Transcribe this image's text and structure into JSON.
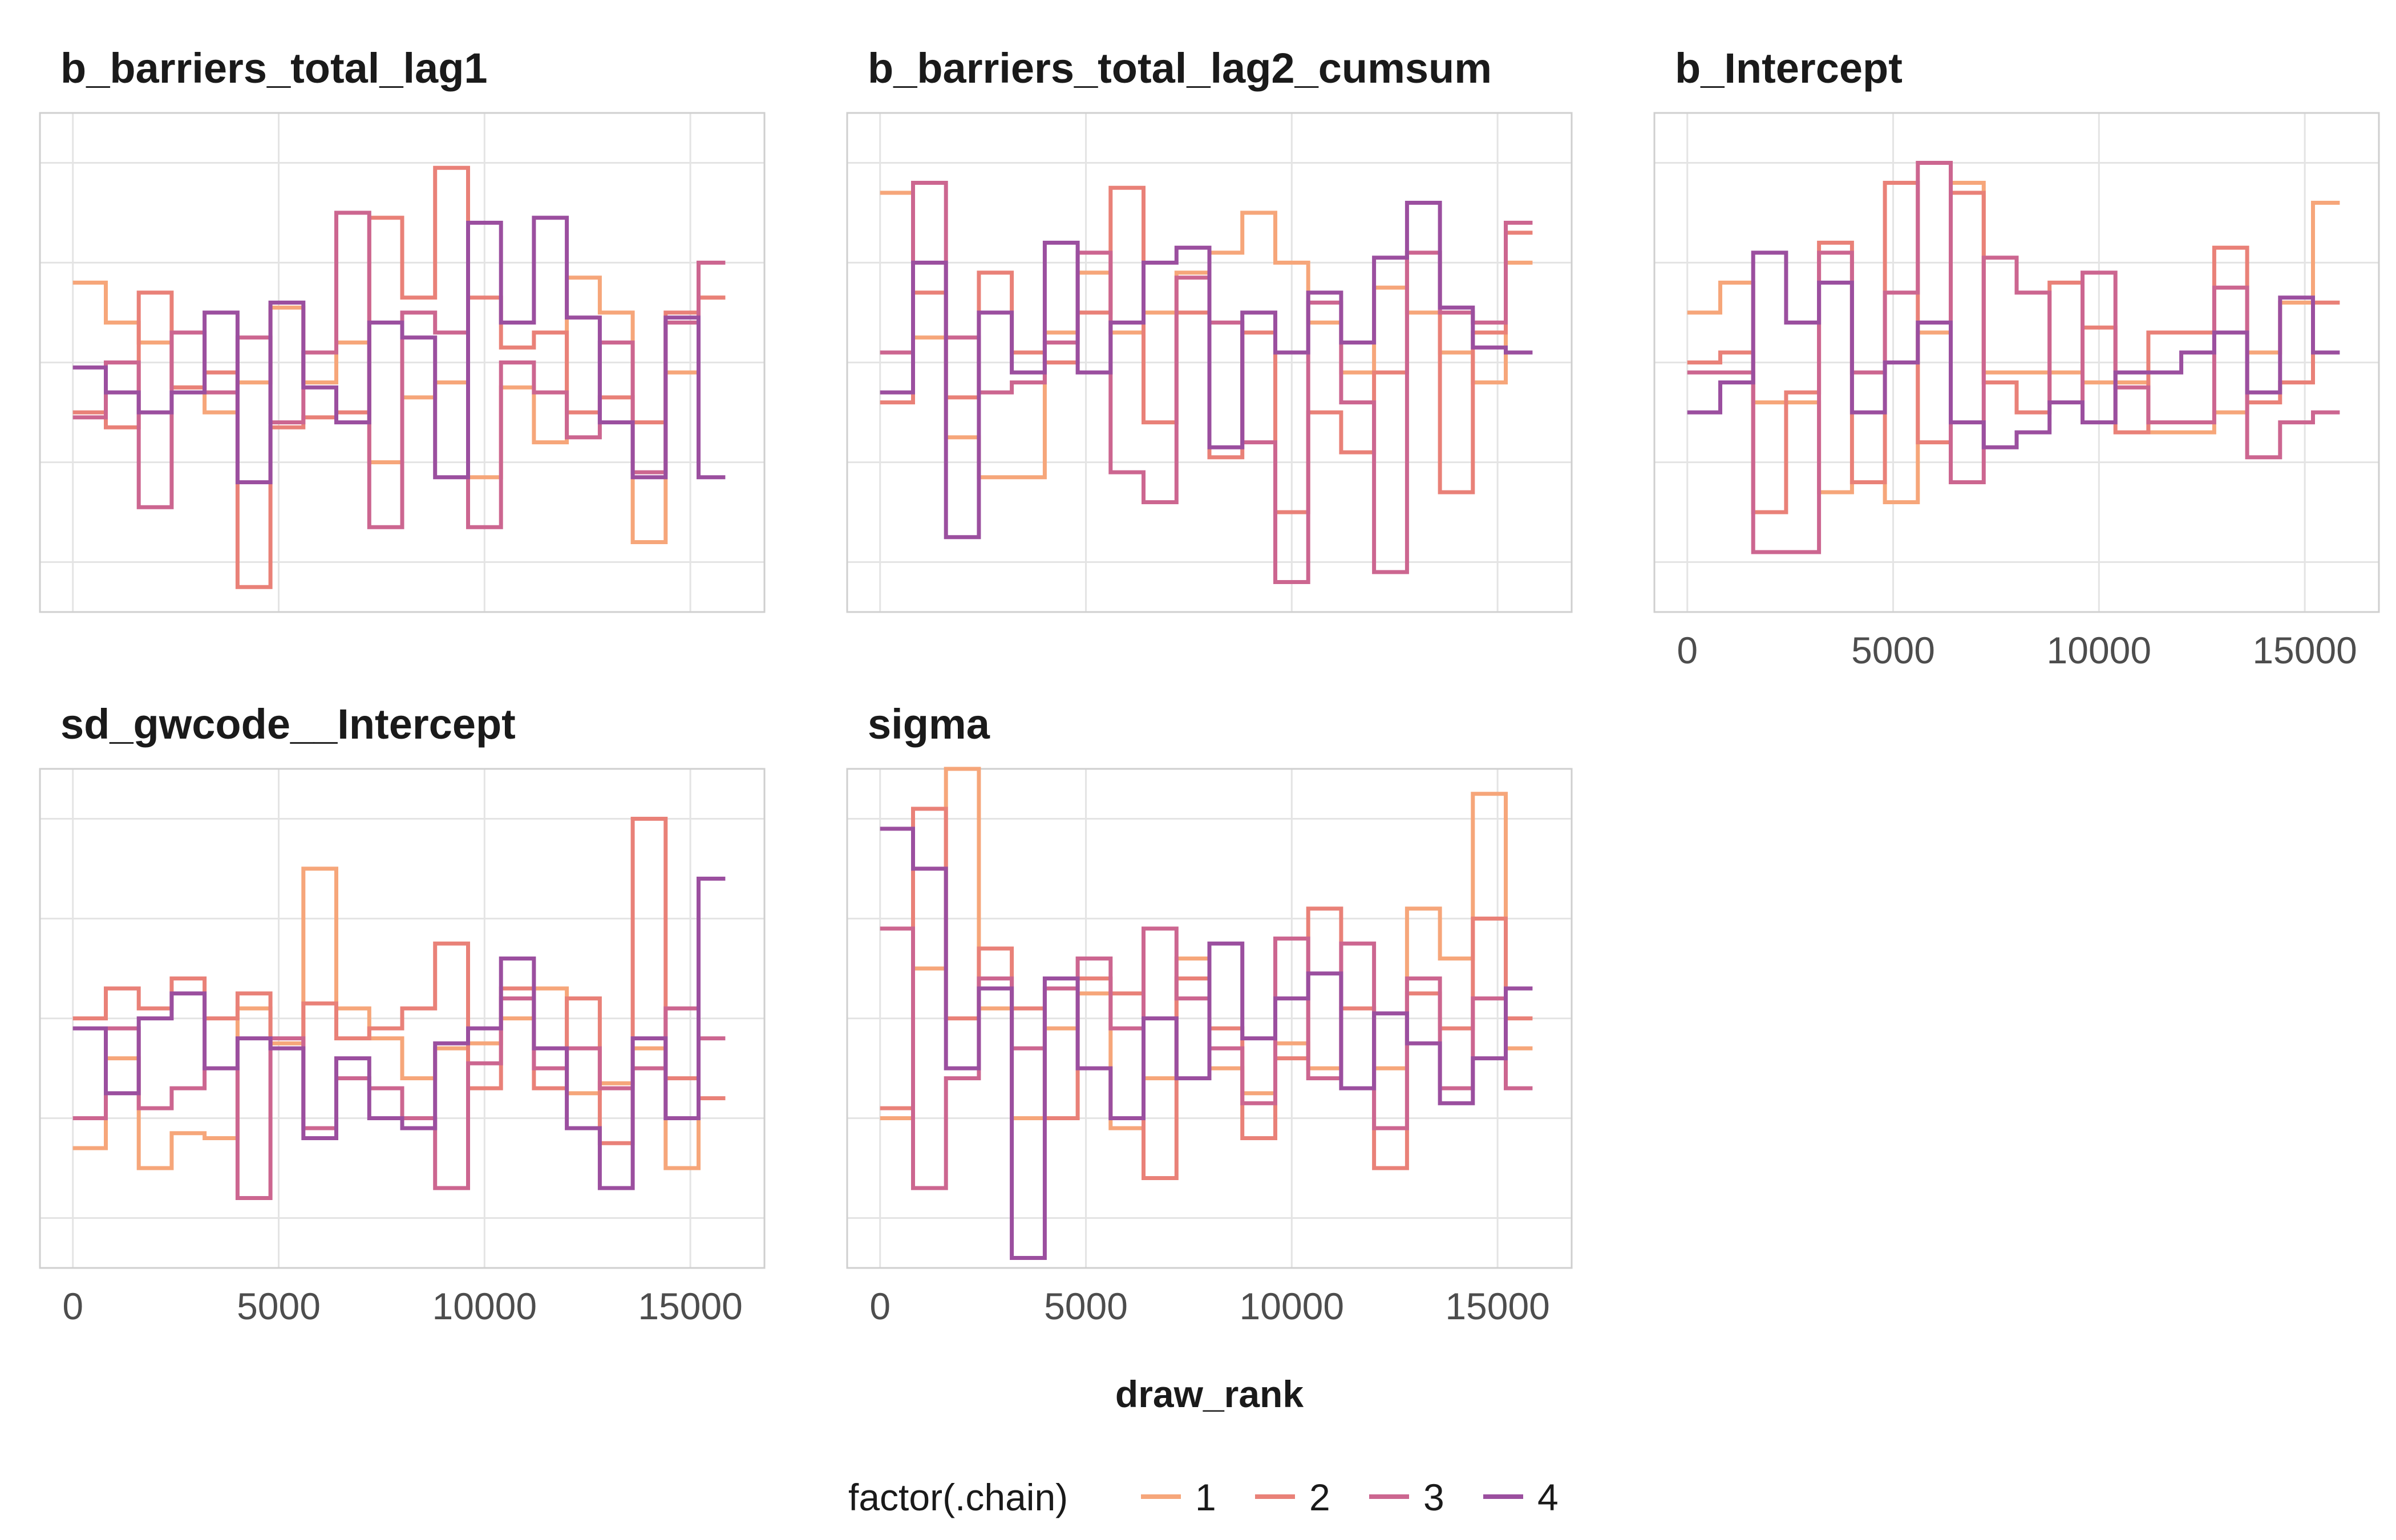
{
  "chart_data": {
    "type": "line",
    "step": true,
    "xlabel": "draw_rank",
    "x_ticks": [
      0,
      5000,
      10000,
      15000
    ],
    "xlim": [
      -800,
      16800
    ],
    "grid": true,
    "legend": {
      "title": "factor(.chain)",
      "placement": "bottom",
      "entries": [
        {
          "label": "1",
          "color": "#f6a67a"
        },
        {
          "label": "2",
          "color": "#e98178"
        },
        {
          "label": "3",
          "color": "#cc6690"
        },
        {
          "label": "4",
          "color": "#9b4f9f"
        }
      ]
    },
    "x": [
      0,
      800,
      1600,
      2400,
      3200,
      4000,
      4800,
      5600,
      6400,
      7200,
      8000,
      8800,
      9600,
      10400,
      11200,
      12000,
      12800,
      13600,
      14400,
      15200,
      15850
    ],
    "panels": [
      {
        "title": "b_barriers_total_lag1",
        "ylim": [
          0,
          100
        ],
        "series": [
          {
            "chain": "1",
            "values": [
              66,
              58,
              54,
              45,
              40,
              46,
              61,
              46,
              54,
              30,
              43,
              46,
              27,
              45,
              34,
              67,
              60,
              14,
              48,
              63
            ]
          },
          {
            "chain": "2",
            "values": [
              40,
              37,
              64,
              45,
              48,
              5,
              37,
              39,
              40,
              79,
              63,
              89,
              63,
              53,
              56,
              40,
              43,
              38,
              60,
              63
            ]
          },
          {
            "chain": "3",
            "values": [
              39,
              50,
              21,
              56,
              44,
              55,
              38,
              52,
              80,
              17,
              60,
              56,
              17,
              50,
              44,
              35,
              54,
              28,
              58,
              70
            ]
          },
          {
            "chain": "4",
            "values": [
              49,
              44,
              40,
              44,
              60,
              26,
              62,
              45,
              38,
              58,
              55,
              27,
              78,
              58,
              79,
              59,
              38,
              27,
              59,
              27
            ]
          }
        ]
      },
      {
        "title": "b_barriers_total_lag2_cumsum",
        "ylim": [
          0,
          100
        ],
        "series": [
          {
            "chain": "1",
            "values": [
              84,
              55,
              35,
              27,
              27,
              56,
              68,
              56,
              60,
              68,
              72,
              80,
              70,
              58,
              48,
              65,
              60,
              52,
              46,
              70
            ]
          },
          {
            "chain": "2",
            "values": [
              42,
              64,
              43,
              68,
              52,
              50,
              60,
              85,
              38,
              60,
              31,
              56,
              20,
              40,
              32,
              48,
              72,
              24,
              56,
              76
            ]
          },
          {
            "chain": "3",
            "values": [
              52,
              86,
              55,
              44,
              46,
              54,
              72,
              28,
              22,
              67,
              58,
              34,
              6,
              62,
              42,
              8,
              72,
              60,
              58,
              78
            ]
          },
          {
            "chain": "4",
            "values": [
              44,
              70,
              15,
              60,
              48,
              74,
              48,
              58,
              70,
              73,
              33,
              60,
              52,
              64,
              54,
              71,
              82,
              61,
              53,
              52
            ]
          }
        ]
      },
      {
        "title": "b_Intercept",
        "ylim": [
          0,
          100
        ],
        "series": [
          {
            "chain": "1",
            "values": [
              60,
              66,
              42,
              42,
              24,
              26,
              22,
              56,
              86,
              48,
              48,
              48,
              46,
              46,
              36,
              36,
              40,
              52,
              62,
              82
            ]
          },
          {
            "chain": "2",
            "values": [
              50,
              52,
              20,
              44,
              74,
              26,
              86,
              34,
              84,
              46,
              40,
              66,
              57,
              36,
              56,
              56,
              73,
              42,
              46,
              62
            ]
          },
          {
            "chain": "3",
            "values": [
              48,
              48,
              12,
              12,
              72,
              48,
              64,
              90,
              26,
              71,
              64,
              42,
              68,
              45,
              38,
              38,
              65,
              31,
              38,
              40
            ]
          },
          {
            "chain": "4",
            "values": [
              40,
              46,
              72,
              58,
              66,
              40,
              50,
              58,
              38,
              33,
              36,
              42,
              38,
              48,
              48,
              52,
              56,
              44,
              63,
              52
            ]
          }
        ]
      },
      {
        "title": "sd_gwcode__Intercept",
        "ylim": [
          0,
          100
        ],
        "series": [
          {
            "chain": "1",
            "values": [
              24,
              42,
              20,
              27,
              26,
              52,
              45,
              80,
              52,
              46,
              38,
              44,
              45,
              50,
              56,
              35,
              37,
              44,
              20,
              34
            ]
          },
          {
            "chain": "2",
            "values": [
              50,
              56,
              52,
              58,
              50,
              55,
              44,
              53,
              46,
              48,
              52,
              65,
              36,
              56,
              36,
              54,
              25,
              90,
              38,
              34
            ]
          },
          {
            "chain": "3",
            "values": [
              30,
              48,
              32,
              36,
              40,
              14,
              46,
              28,
              38,
              36,
              30,
              16,
              41,
              54,
              40,
              44,
              36,
              40,
              52,
              46
            ]
          },
          {
            "chain": "4",
            "values": [
              48,
              35,
              50,
              55,
              40,
              46,
              44,
              26,
              42,
              30,
              28,
              45,
              48,
              62,
              44,
              28,
              16,
              46,
              30,
              78
            ]
          }
        ]
      },
      {
        "title": "sigma",
        "ylim": [
          0,
          100
        ],
        "series": [
          {
            "chain": "1",
            "values": [
              30,
              60,
              100,
              52,
              30,
              48,
              55,
              28,
              38,
              62,
              40,
              35,
              45,
              40,
              52,
              40,
              72,
              62,
              95,
              44
            ]
          },
          {
            "chain": "2",
            "values": [
              32,
              92,
              50,
              64,
              52,
              30,
              58,
              55,
              18,
              58,
              48,
              26,
              42,
              72,
              52,
              20,
              55,
              48,
              70,
              50
            ]
          },
          {
            "chain": "3",
            "values": [
              68,
              16,
              38,
              58,
              44,
              56,
              62,
              48,
              68,
              54,
              44,
              33,
              66,
              38,
              65,
              28,
              58,
              36,
              54,
              36
            ]
          },
          {
            "chain": "4",
            "values": [
              88,
              80,
              40,
              56,
              2,
              58,
              40,
              30,
              50,
              38,
              65,
              46,
              54,
              59,
              36,
              51,
              45,
              33,
              42,
              56
            ]
          }
        ]
      }
    ]
  }
}
